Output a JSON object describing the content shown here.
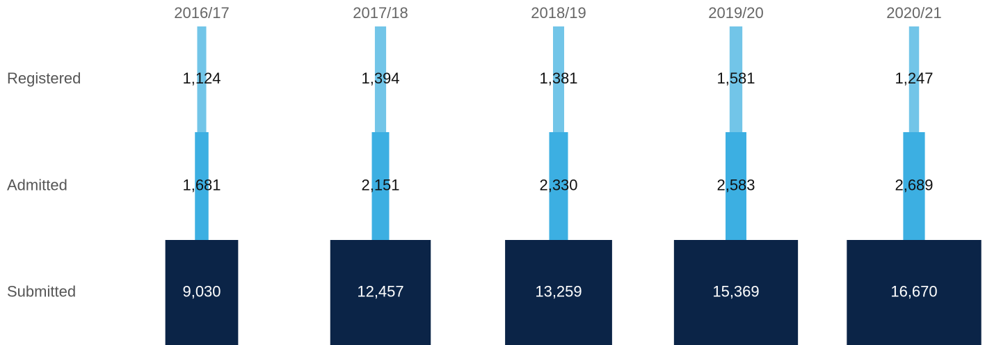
{
  "chart_data": {
    "type": "funnel-bar",
    "categories": [
      "2016/17",
      "2017/18",
      "2018/19",
      "2019/20",
      "2020/21"
    ],
    "series": [
      {
        "name": "Registered",
        "color": "#72c5e8",
        "values": [
          1124,
          1394,
          1381,
          1581,
          1247
        ],
        "value_labels": [
          "1,124",
          "1,394",
          "1,381",
          "1,581",
          "1,247"
        ]
      },
      {
        "name": "Admitted",
        "color": "#3cafe2",
        "values": [
          1681,
          2151,
          2330,
          2583,
          2689
        ],
        "value_labels": [
          "1,681",
          "2,151",
          "2,330",
          "2,583",
          "2,689"
        ]
      },
      {
        "name": "Submitted",
        "color": "#0b2447",
        "values": [
          9030,
          12457,
          13259,
          15369,
          16670
        ],
        "value_labels": [
          "9,030",
          "12,457",
          "13,259",
          "15,369",
          "16,670"
        ]
      }
    ]
  }
}
